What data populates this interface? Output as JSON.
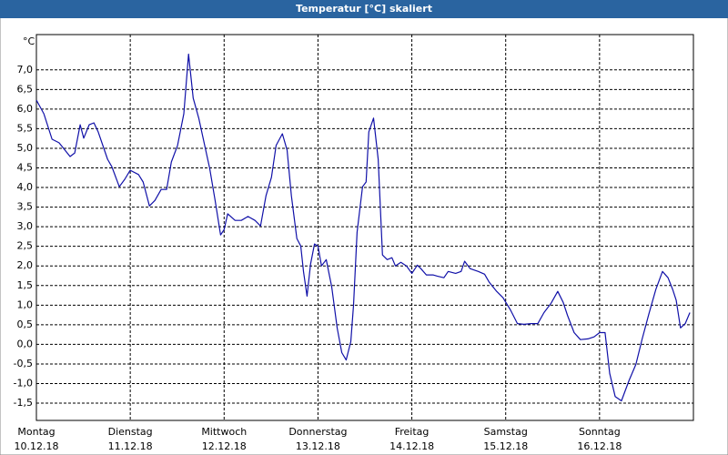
{
  "chart_data": {
    "type": "line",
    "title": "Temperatur [°C] skaliert",
    "y_unit": "°C",
    "color": "#1010a8",
    "grid": true,
    "xlim": [
      0,
      168
    ],
    "ylim": [
      -1.94,
      7.9
    ],
    "xticks": [
      {
        "value": 0,
        "label": "Montag"
      },
      {
        "value": 24,
        "label": "Dienstag"
      },
      {
        "value": 48,
        "label": "Mittwoch"
      },
      {
        "value": 72,
        "label": "Donnerstag"
      },
      {
        "value": 96,
        "label": "Freitag"
      },
      {
        "value": 120,
        "label": "Samstag"
      },
      {
        "value": 144,
        "label": "Sonntag"
      }
    ],
    "xtick_dates": [
      "10.12.18",
      "11.12.18",
      "12.12.18",
      "13.12.18",
      "14.12.18",
      "15.12.18",
      "16.12.18"
    ],
    "yticks": [
      {
        "value": -1.5,
        "label": "-1,5"
      },
      {
        "value": -1,
        "label": "-1,0"
      },
      {
        "value": -0.5,
        "label": "-0,5"
      },
      {
        "value": 0,
        "label": "0,0"
      },
      {
        "value": 0.5,
        "label": "0,5"
      },
      {
        "value": 1,
        "label": "1,0"
      },
      {
        "value": 1.5,
        "label": "1,5"
      },
      {
        "value": 2,
        "label": "2,0"
      },
      {
        "value": 2.5,
        "label": "2,5"
      },
      {
        "value": 3,
        "label": "3,0"
      },
      {
        "value": 3.5,
        "label": "3,5"
      },
      {
        "value": 4,
        "label": "4,0"
      },
      {
        "value": 4.5,
        "label": "4,5"
      },
      {
        "value": 5,
        "label": "5,0"
      },
      {
        "value": 5.5,
        "label": "5,5"
      },
      {
        "value": 6,
        "label": "6,0"
      },
      {
        "value": 6.5,
        "label": "6,5"
      },
      {
        "value": 7,
        "label": "7,0"
      }
    ],
    "x": [
      0,
      1.9,
      4.0,
      5.8,
      8.6,
      9.8,
      11.2,
      12.1,
      13.5,
      14.7,
      15.8,
      18.2,
      19.3,
      21.2,
      22.6,
      24.0,
      26.1,
      27.3,
      28.9,
      30.3,
      31.9,
      33.3,
      34.5,
      36.1,
      37.7,
      38.9,
      40.1,
      41.5,
      44.3,
      45.7,
      47.1,
      48.0,
      48.9,
      50.8,
      52.4,
      54.1,
      55.9,
      57.3,
      58.7,
      60.1,
      61.3,
      62.9,
      64.1,
      65.2,
      66.6,
      67.6,
      68.3,
      69.2,
      70.1,
      71.1,
      72.0,
      72.9,
      74.1,
      75.5,
      76.9,
      78.1,
      79.2,
      80.4,
      81.1,
      82.0,
      83.4,
      84.3,
      85.0,
      86.2,
      87.4,
      88.5,
      89.7,
      90.9,
      91.8,
      93.2,
      94.6,
      96.0,
      97.4,
      98.3,
      99.7,
      101.4,
      102.5,
      104.2,
      105.3,
      107.2,
      108.6,
      109.5,
      110.9,
      113.0,
      114.6,
      115.8,
      117.7,
      119.3,
      121.2,
      123.0,
      124.7,
      126.5,
      128.2,
      129.8,
      131.6,
      133.3,
      134.7,
      135.8,
      137.5,
      139.1,
      141.0,
      142.6,
      144.0,
      145.4,
      146.6,
      148.0,
      149.6,
      151.5,
      153.3,
      154.9,
      156.6,
      158.4,
      160.1,
      161.5,
      162.7,
      163.6,
      164.7,
      165.9,
      167.1
    ],
    "values": [
      6.23,
      5.88,
      5.23,
      5.14,
      4.79,
      4.88,
      5.6,
      5.26,
      5.6,
      5.65,
      5.42,
      4.72,
      4.53,
      4.02,
      4.21,
      4.44,
      4.33,
      4.14,
      3.53,
      3.67,
      3.95,
      3.95,
      4.65,
      5.07,
      5.88,
      7.4,
      6.28,
      5.77,
      4.49,
      3.67,
      2.79,
      2.93,
      3.33,
      3.16,
      3.16,
      3.26,
      3.16,
      3.02,
      3.79,
      4.26,
      5.07,
      5.37,
      4.95,
      3.79,
      2.7,
      2.51,
      1.86,
      1.23,
      2.05,
      2.56,
      2.51,
      2.0,
      2.16,
      1.47,
      0.42,
      -0.21,
      -0.4,
      0.07,
      1.0,
      2.86,
      4.02,
      4.14,
      5.42,
      5.77,
      4.72,
      2.28,
      2.16,
      2.21,
      2.0,
      2.09,
      2.0,
      1.81,
      2.02,
      1.93,
      1.77,
      1.77,
      1.74,
      1.7,
      1.86,
      1.81,
      1.86,
      2.12,
      1.93,
      1.86,
      1.79,
      1.58,
      1.35,
      1.19,
      0.88,
      0.53,
      0.51,
      0.53,
      0.53,
      0.81,
      1.05,
      1.35,
      1.07,
      0.74,
      0.3,
      0.12,
      0.14,
      0.19,
      0.3,
      0.3,
      -0.74,
      -1.33,
      -1.44,
      -0.93,
      -0.51,
      0.14,
      0.77,
      1.4,
      1.86,
      1.7,
      1.4,
      1.12,
      0.42,
      0.53,
      0.81
    ]
  }
}
